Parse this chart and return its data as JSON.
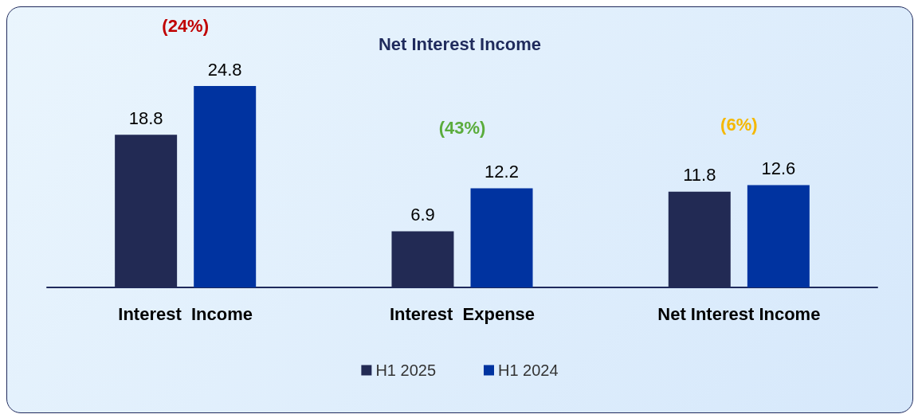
{
  "chart_data": {
    "type": "bar",
    "title": "Net Interest Income",
    "categories": [
      "Interest  Income",
      "Interest  Expense",
      "Net Interest Income"
    ],
    "series": [
      {
        "name": "H1 2025",
        "color": "#222a54",
        "values": [
          18.8,
          6.9,
          11.8
        ]
      },
      {
        "name": "H1 2024",
        "color": "#0033a0",
        "values": [
          24.8,
          12.2,
          12.6
        ]
      }
    ],
    "annotations": [
      "(24%)",
      "(43%)",
      "(6%)"
    ],
    "data_labels": true,
    "legend": "bottom",
    "grid": false
  }
}
